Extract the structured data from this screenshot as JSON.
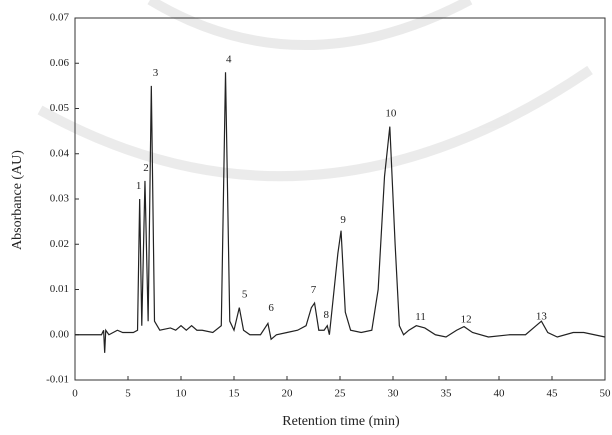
{
  "chart_data": {
    "type": "line",
    "xlabel": "Retention time (min)",
    "ylabel": "Absorbance (AU)",
    "xlim": [
      0,
      50
    ],
    "xticks": [
      0,
      5,
      10,
      15,
      20,
      25,
      30,
      35,
      40,
      45,
      50
    ],
    "ylim": [
      -0.01,
      0.07
    ],
    "yticks": [
      -0.01,
      {
        "value": 0,
        "label": "0.00"
      },
      0.01,
      0.02,
      0.03,
      0.04,
      0.05,
      0.06,
      0.07
    ],
    "x": [
      0,
      2.5,
      2.7,
      2.8,
      2.9,
      3.2,
      4,
      4.5,
      5.5,
      5.9,
      6.1,
      6.3,
      6.6,
      6.9,
      7.2,
      7.5,
      8,
      9,
      9.5,
      10,
      10.5,
      11,
      11.5,
      12,
      13,
      13.8,
      14.2,
      14.6,
      15,
      15.5,
      15.9,
      16.5,
      17.5,
      18.2,
      18.5,
      19,
      20,
      21,
      21.8,
      22.3,
      22.6,
      23,
      23.5,
      23.8,
      24,
      24.4,
      24.8,
      25.1,
      25.5,
      26,
      27,
      28,
      28.6,
      29.2,
      29.7,
      30.2,
      30.6,
      31,
      31.5,
      32.2,
      33,
      34,
      35,
      36,
      36.7,
      37.5,
      39,
      41,
      42.5,
      43.5,
      44,
      44.6,
      45.5,
      47,
      48,
      50
    ],
    "series": [
      {
        "color": "#222222",
        "values": [
          0,
          0,
          0.001,
          -0.004,
          0.001,
          0,
          0.001,
          0.0005,
          0.0005,
          0.001,
          0.03,
          0.002,
          0.034,
          0.003,
          0.055,
          0.003,
          0.001,
          0.0015,
          0.001,
          0.002,
          0.001,
          0.002,
          0.001,
          0.001,
          0.0005,
          0.002,
          0.058,
          0.003,
          0.001,
          0.006,
          0.001,
          0,
          0,
          0.0025,
          -0.001,
          0,
          0.0005,
          0.001,
          0.002,
          0.006,
          0.007,
          0.001,
          0.001,
          0.002,
          0,
          0.009,
          0.018,
          0.023,
          0.005,
          0.001,
          0.0005,
          0.001,
          0.01,
          0.035,
          0.046,
          0.02,
          0.002,
          0,
          0.001,
          0.002,
          0.0015,
          0,
          -0.0005,
          0.001,
          0.0018,
          0.0005,
          -0.0005,
          0,
          0,
          0.002,
          0.003,
          0.0005,
          -0.0005,
          0.0005,
          0.0005,
          -0.0005
        ]
      }
    ],
    "peaks": [
      {
        "label": "1",
        "x": 6.0,
        "y": 0.031
      },
      {
        "label": "2",
        "x": 6.7,
        "y": 0.035
      },
      {
        "label": "3",
        "x": 7.6,
        "y": 0.056
      },
      {
        "label": "4",
        "x": 14.5,
        "y": 0.059
      },
      {
        "label": "5",
        "x": 16.0,
        "y": 0.007
      },
      {
        "label": "6",
        "x": 18.5,
        "y": 0.004
      },
      {
        "label": "7",
        "x": 22.5,
        "y": 0.008
      },
      {
        "label": "8",
        "x": 23.7,
        "y": 0.0025
      },
      {
        "label": "9",
        "x": 25.3,
        "y": 0.0235
      },
      {
        "label": "10",
        "x": 29.8,
        "y": 0.047
      },
      {
        "label": "11",
        "x": 32.6,
        "y": 0.002
      },
      {
        "label": "12",
        "x": 36.9,
        "y": 0.0015
      },
      {
        "label": "13",
        "x": 44.0,
        "y": 0.0022
      }
    ]
  }
}
